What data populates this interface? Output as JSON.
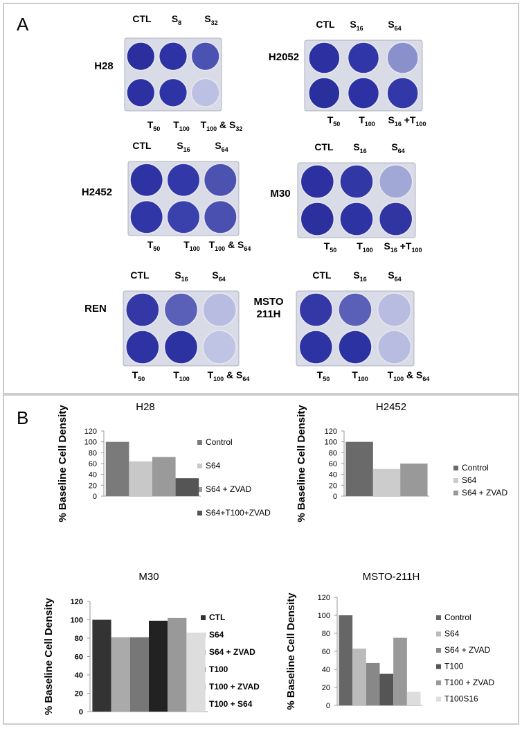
{
  "panel_a": {
    "label": "A",
    "plates": [
      {
        "name": [
          "H28"
        ],
        "top": [
          [
            "CTL"
          ],
          [
            "S",
            "8"
          ],
          [
            "S",
            "32"
          ]
        ],
        "bottom": [
          [
            "T",
            "50"
          ],
          [
            "T",
            "100"
          ],
          [
            "T",
            "100",
            " & S",
            "32"
          ]
        ]
      },
      {
        "name": [
          "H2052"
        ],
        "top": [
          [
            "CTL"
          ],
          [
            "S",
            "16"
          ],
          [
            "S",
            "64"
          ]
        ],
        "bottom": [
          [
            "T",
            "50"
          ],
          [
            "T",
            "100"
          ],
          [
            "S",
            "16",
            " +T",
            "100"
          ]
        ]
      },
      {
        "name": [
          "H2452"
        ],
        "top": [
          [
            "CTL"
          ],
          [
            "S",
            "16"
          ],
          [
            "S",
            "64"
          ]
        ],
        "bottom": [
          [
            "T",
            "50"
          ],
          [
            "T",
            "100"
          ],
          [
            "T",
            "100",
            " & S",
            "64"
          ]
        ]
      },
      {
        "name": [
          "M30"
        ],
        "top": [
          [
            "CTL"
          ],
          [
            "S",
            "16"
          ],
          [
            "S",
            "64"
          ]
        ],
        "bottom": [
          [
            "T",
            "50"
          ],
          [
            "T",
            "100"
          ],
          [
            "S",
            "16",
            " +T",
            "100"
          ]
        ]
      },
      {
        "name": [
          "REN"
        ],
        "top": [
          [
            "CTL"
          ],
          [
            "S",
            "16"
          ],
          [
            "S",
            "64"
          ]
        ],
        "bottom": [
          [
            "T",
            "50"
          ],
          [
            "T",
            "100"
          ],
          [
            "T",
            "100",
            " & S",
            "64"
          ]
        ]
      },
      {
        "name": [
          "MSTO",
          "211H"
        ],
        "top": [
          [
            "CTL"
          ],
          [
            "S",
            "16"
          ],
          [
            "S",
            "64"
          ]
        ],
        "bottom": [
          [
            "T",
            "50"
          ],
          [
            "T",
            "100"
          ],
          [
            "T",
            "100",
            " & S",
            "64"
          ]
        ]
      }
    ]
  },
  "panel_b_label": "B",
  "chart_data": [
    {
      "type": "bar",
      "title": "H28",
      "y_label": "% Baseline Cell Density",
      "categories": [
        null
      ],
      "ylim": [
        0,
        120
      ],
      "yticks": [
        0,
        20,
        40,
        60,
        80,
        100,
        120
      ],
      "series": [
        {
          "name": "Control",
          "color": "#7a7a7a",
          "values": [
            100
          ]
        },
        {
          "name": "S64",
          "color": "#c8c8c8",
          "values": [
            64
          ]
        },
        {
          "name": "S64 + ZVAD",
          "color": "#9a9a9a",
          "values": [
            72
          ]
        },
        {
          "name": "S64+T100+ZVAD",
          "color": "#555555",
          "values": [
            33
          ]
        }
      ]
    },
    {
      "type": "bar",
      "title": "H2452",
      "y_label": "% Baseline Cell Density",
      "categories": [
        null
      ],
      "ylim": [
        0,
        120
      ],
      "yticks": [
        0,
        20,
        40,
        60,
        80,
        100,
        120
      ],
      "series": [
        {
          "name": "Control",
          "color": "#6a6a6a",
          "values": [
            100
          ]
        },
        {
          "name": "S64",
          "color": "#cccccc",
          "values": [
            50
          ]
        },
        {
          "name": "S64 + ZVAD",
          "color": "#999999",
          "values": [
            60
          ]
        }
      ]
    },
    {
      "type": "bar",
      "title": "M30",
      "y_label": "% Baseline Cell Density",
      "categories": [
        null
      ],
      "ylim": [
        0,
        120
      ],
      "yticks": [
        0,
        20,
        40,
        60,
        80,
        100,
        120
      ],
      "bold": true,
      "series": [
        {
          "name": "CTL",
          "color": "#333333",
          "values": [
            100
          ]
        },
        {
          "name": "S64",
          "color": "#aaaaaa",
          "values": [
            81
          ]
        },
        {
          "name": "S64 + ZVAD",
          "color": "#777777",
          "values": [
            81
          ]
        },
        {
          "name": "T100",
          "color": "#222222",
          "values": [
            99
          ]
        },
        {
          "name": "T100 + ZVAD",
          "color": "#999999",
          "values": [
            102
          ]
        },
        {
          "name": "T100 + S64",
          "color": "#dddddd",
          "values": [
            86
          ]
        }
      ]
    },
    {
      "type": "bar",
      "title": "MSTO-211H",
      "y_label": "% Baseline Cell Density",
      "categories": [
        null
      ],
      "ylim": [
        0,
        120
      ],
      "yticks": [
        0,
        20,
        40,
        60,
        80,
        100,
        120
      ],
      "series": [
        {
          "name": "Control",
          "color": "#666666",
          "values": [
            100
          ]
        },
        {
          "name": "S64",
          "color": "#bbbbbb",
          "values": [
            63
          ]
        },
        {
          "name": "S64 + ZVAD",
          "color": "#888888",
          "values": [
            47
          ]
        },
        {
          "name": "T100",
          "color": "#555555",
          "values": [
            35
          ]
        },
        {
          "name": "T100 + ZVAD",
          "color": "#999999",
          "values": [
            75
          ]
        },
        {
          "name": "T100S16",
          "color": "#dddddd",
          "values": [
            15
          ]
        }
      ]
    }
  ]
}
